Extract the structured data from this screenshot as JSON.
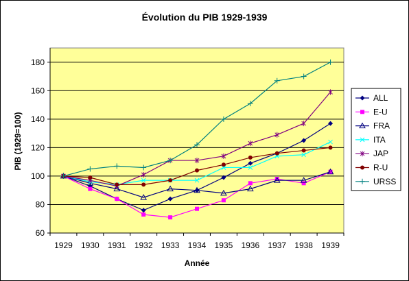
{
  "chart_data": {
    "type": "line",
    "title": "Évolution du PIB 1929-1939",
    "xlabel": "Année",
    "ylabel": "PIB (1929=100)",
    "categories": [
      "1929",
      "1930",
      "1931",
      "1932",
      "1933",
      "1934",
      "1935",
      "1936",
      "1937",
      "1938",
      "1939"
    ],
    "ylim": [
      60,
      190
    ],
    "yticks": [
      60,
      80,
      100,
      120,
      140,
      160,
      180
    ],
    "grid": true,
    "legend_position": "right",
    "plot_background": "#ffff99",
    "series": [
      {
        "name": "ALL",
        "color": "#000080",
        "marker": "diamond",
        "values": [
          100,
          93,
          84,
          76,
          84,
          90,
          99,
          109,
          116,
          125,
          137
        ]
      },
      {
        "name": "E-U",
        "color": "#ff00ff",
        "marker": "square",
        "values": [
          100,
          91,
          84,
          73,
          71,
          77,
          83,
          95,
          98,
          95,
          103
        ]
      },
      {
        "name": "FRA",
        "color": "#000080",
        "marker": "triangle-open",
        "values": [
          100,
          95,
          91,
          85,
          91,
          90,
          88,
          91,
          97,
          97,
          103
        ]
      },
      {
        "name": "ITA",
        "color": "#00ffff",
        "marker": "x",
        "values": [
          100,
          96,
          94,
          97,
          97,
          97,
          106,
          106,
          114,
          115,
          124
        ]
      },
      {
        "name": "JAP",
        "color": "#800080",
        "marker": "star",
        "values": [
          100,
          97,
          93,
          101,
          111,
          111,
          114,
          123,
          129,
          137,
          159
        ]
      },
      {
        "name": "R-U",
        "color": "#800000",
        "marker": "circle",
        "values": [
          100,
          99,
          94,
          94,
          97,
          104,
          108,
          113,
          116,
          118,
          120
        ]
      },
      {
        "name": "URSS",
        "color": "#008080",
        "marker": "plus",
        "values": [
          100,
          105,
          107,
          106,
          111,
          122,
          140,
          151,
          167,
          170,
          180
        ]
      }
    ]
  }
}
